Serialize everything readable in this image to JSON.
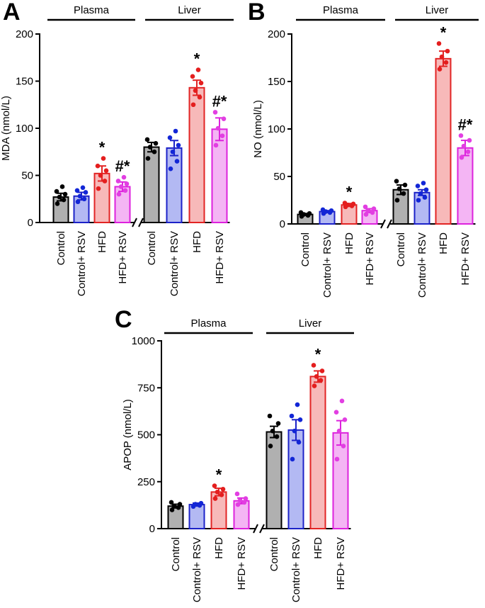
{
  "figure": {
    "series_styles": [
      {
        "name": "Control",
        "fill": "#b0b0b0",
        "stroke": "#000000",
        "dot": "#000000"
      },
      {
        "name": "Control+ RSV",
        "fill": "#b3b9f3",
        "stroke": "#1c22c8",
        "dot": "#1226d6"
      },
      {
        "name": "HFD",
        "fill": "#f7b9b9",
        "stroke": "#e22424",
        "dot": "#e41e1e"
      },
      {
        "name": "HFD+ RSV",
        "fill": "#f4b5f4",
        "stroke": "#dd22dd",
        "dot": "#e23ee2"
      }
    ]
  },
  "chart_data": [
    {
      "panel": "A",
      "type": "bar",
      "ylabel": "MDA (nmol/L)",
      "ylim": [
        0,
        200
      ],
      "yticks": [
        0,
        50,
        100,
        150,
        200
      ],
      "categories": [
        "Control",
        "Control+ RSV",
        "HFD",
        "HFD+ RSV"
      ],
      "groups": [
        {
          "name": "Plasma",
          "values": [
            27,
            28,
            52,
            38
          ],
          "errors": [
            4,
            4,
            8,
            5
          ],
          "points": [
            [
              20,
              24,
              27,
              30,
              33,
              38
            ],
            [
              22,
              25,
              28,
              32,
              34,
              37
            ],
            [
              36,
              44,
              50,
              55,
              60,
              68
            ],
            [
              30,
              34,
              38,
              41,
              44,
              48
            ]
          ],
          "annotations": [
            "",
            "",
            "*",
            "#*"
          ]
        },
        {
          "name": "Liver",
          "values": [
            80,
            79,
            143,
            99
          ],
          "errors": [
            5,
            8,
            8,
            12
          ],
          "points": [
            [
              68,
              75,
              80,
              84,
              88
            ],
            [
              57,
              65,
              75,
              82,
              90,
              97
            ],
            [
              125,
              133,
              140,
              148,
              155,
              162
            ],
            [
              82,
              92,
              100,
              110,
              117
            ]
          ],
          "annotations": [
            "",
            "",
            "*",
            "#*"
          ]
        }
      ]
    },
    {
      "panel": "B",
      "type": "bar",
      "ylabel": "NO (nmol/L)",
      "ylim": [
        0,
        200
      ],
      "yticks": [
        0,
        50,
        100,
        150,
        200
      ],
      "categories": [
        "Control",
        "Control+ RSV",
        "HFD",
        "HFD+ RSV"
      ],
      "groups": [
        {
          "name": "Plasma",
          "values": [
            10,
            13,
            20,
            14
          ],
          "errors": [
            1,
            1,
            1.5,
            2
          ],
          "points": [
            [
              8,
              9,
              10,
              11,
              12
            ],
            [
              11,
              12,
              13,
              14,
              15
            ],
            [
              18,
              19,
              20,
              21,
              22
            ],
            [
              10,
              12,
              14,
              16,
              18
            ]
          ],
          "annotations": [
            "",
            "",
            "*",
            ""
          ]
        },
        {
          "name": "Liver",
          "values": [
            36,
            33,
            174,
            80
          ],
          "errors": [
            5,
            3,
            8,
            8
          ],
          "points": [
            [
              25,
              32,
              37,
              41,
              45
            ],
            [
              25,
              28,
              32,
              36,
              40,
              43
            ],
            [
              163,
              170,
              176,
              182,
              190
            ],
            [
              70,
              76,
              82,
              88,
              93
            ]
          ],
          "annotations": [
            "",
            "",
            "*",
            "#*"
          ]
        }
      ]
    },
    {
      "panel": "C",
      "type": "bar",
      "ylabel": "APOP (nmol/L)",
      "ylim": [
        0,
        1000
      ],
      "yticks": [
        0,
        250,
        500,
        750,
        1000
      ],
      "categories": [
        "Control",
        "Control+ RSV",
        "HFD",
        "HFD+ RSV"
      ],
      "groups": [
        {
          "name": "Plasma",
          "values": [
            120,
            128,
            195,
            148
          ],
          "errors": [
            10,
            8,
            20,
            15
          ],
          "points": [
            [
              100,
              112,
              120,
              130,
              140
            ],
            [
              118,
              124,
              130,
              135
            ],
            [
              160,
              180,
              195,
              210,
              228
            ],
            [
              128,
              140,
              150,
              160,
              185
            ]
          ],
          "annotations": [
            "",
            "",
            "*",
            ""
          ]
        },
        {
          "name": "Liver",
          "values": [
            515,
            525,
            810,
            510
          ],
          "errors": [
            30,
            55,
            30,
            65
          ],
          "points": [
            [
              440,
              490,
              520,
              560,
              600
            ],
            [
              370,
              460,
              520,
              580,
              600,
              660
            ],
            [
              760,
              790,
              810,
              840,
              870
            ],
            [
              370,
              440,
              520,
              580,
              620,
              680
            ]
          ],
          "annotations": [
            "",
            "",
            "*",
            ""
          ]
        }
      ]
    }
  ]
}
